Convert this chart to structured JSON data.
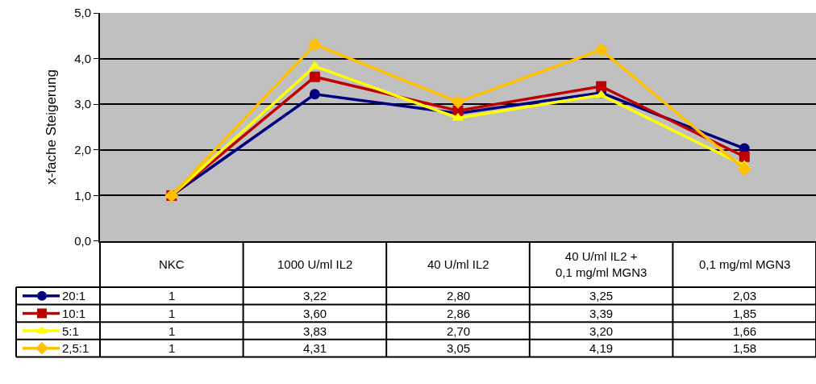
{
  "chart_data": {
    "type": "line",
    "ylabel": "x-fache Steigerung",
    "categories": [
      "NKC",
      "1000 U/ml IL2",
      "40 U/ml IL2",
      "40 U/ml IL2 +\n0,1 mg/ml MGN3",
      "0,1 mg/ml MGN3"
    ],
    "series": [
      {
        "name": "20:1",
        "color": "#000080",
        "marker": "circle",
        "values": [
          1,
          3.22,
          2.8,
          3.25,
          2.03
        ],
        "value_labels": [
          "1",
          "3,22",
          "2,80",
          "3,25",
          "2,03"
        ]
      },
      {
        "name": "10:1",
        "color": "#c00000",
        "marker": "square",
        "values": [
          1,
          3.6,
          2.86,
          3.39,
          1.85
        ],
        "value_labels": [
          "1",
          "3,60",
          "2,86",
          "3,39",
          "1,85"
        ]
      },
      {
        "name": "5:1",
        "color": "#ffff00",
        "marker": "triangle",
        "values": [
          1,
          3.83,
          2.7,
          3.2,
          1.66
        ],
        "value_labels": [
          "1",
          "3,83",
          "2,70",
          "3,20",
          "1,66"
        ]
      },
      {
        "name": "2,5:1",
        "color": "#ffc000",
        "marker": "diamond",
        "values": [
          1,
          4.31,
          3.05,
          4.19,
          1.58
        ],
        "value_labels": [
          "1",
          "4,31",
          "3,05",
          "4,19",
          "1,58"
        ]
      }
    ],
    "ylim": [
      0,
      5
    ],
    "yticks": [
      {
        "value": 0,
        "label": "0,0"
      },
      {
        "value": 1,
        "label": "1,0"
      },
      {
        "value": 2,
        "label": "2,0"
      },
      {
        "value": 3,
        "label": "3,0"
      },
      {
        "value": 4,
        "label": "4,0"
      },
      {
        "value": 5,
        "label": "5,0"
      }
    ],
    "grid": "y",
    "line_style": "solid",
    "legend": "bottom left"
  }
}
